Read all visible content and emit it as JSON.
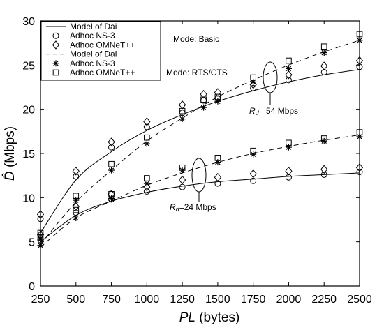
{
  "chart_data": {
    "type": "line",
    "xlabel_italic": "PL",
    "xlabel_rest": " (bytes)",
    "ylabel_symbol": "D̂",
    "ylabel_rest": " (Mbps)",
    "xlim": [
      250,
      2500
    ],
    "ylim": [
      0,
      30
    ],
    "x_ticks": [
      250,
      500,
      750,
      1000,
      1250,
      1500,
      1750,
      2000,
      2250,
      2500
    ],
    "y_ticks": [
      0,
      5,
      10,
      15,
      20,
      25,
      30
    ],
    "grid": false,
    "legend_placement": "top-left",
    "legend_groups": [
      [
        {
          "label": "Model of Dai",
          "style": "solid-line"
        },
        {
          "label": "Adhoc NS-3",
          "style": "circle"
        },
        {
          "label": "Adhoc OMNeT++",
          "style": "diamond"
        }
      ],
      [
        {
          "label": "Model of Dai",
          "style": "dashed-line"
        },
        {
          "label": "Adhoc NS-3",
          "style": "star"
        },
        {
          "label": "Adhoc OMNeT++",
          "style": "square"
        }
      ]
    ],
    "mode_labels": [
      "Mode: Basic",
      "Mode: RTS/CTS"
    ],
    "rate_annotations": [
      {
        "prefix": "R",
        "sub": "d",
        "value": " =54 Mbps"
      },
      {
        "prefix": "R",
        "sub": "d",
        "value": "=24 Mbps"
      }
    ],
    "model_x": [
      250,
      500,
      750,
      1000,
      1250,
      1500,
      1750,
      2000,
      2250,
      2500
    ],
    "series": [
      {
        "rate": "54 Mbps",
        "mode": "Basic",
        "kind": "model",
        "style": "solid",
        "values": [
          6.0,
          12.0,
          15.2,
          17.6,
          19.4,
          20.9,
          22.1,
          23.1,
          23.9,
          24.5
        ]
      },
      {
        "rate": "54 Mbps",
        "mode": "Basic",
        "kind": "ns3",
        "marker": "circle",
        "x": [
          250,
          500,
          750,
          1000,
          1250,
          1400,
          1500,
          1750,
          2000,
          2250,
          2500
        ],
        "values": [
          7.6,
          12.4,
          15.7,
          18.0,
          19.6,
          21.0,
          21.2,
          22.4,
          23.3,
          24.2,
          24.8
        ]
      },
      {
        "rate": "54 Mbps",
        "mode": "Basic",
        "kind": "omnet",
        "marker": "diamond",
        "x": [
          250,
          500,
          750,
          1000,
          1250,
          1400,
          1500,
          1750,
          2000,
          2250,
          2500
        ],
        "values": [
          8.1,
          13.0,
          16.3,
          18.6,
          20.5,
          21.7,
          21.9,
          22.8,
          23.9,
          24.9,
          25.5
        ]
      },
      {
        "rate": "54 Mbps",
        "mode": "RTS/CTS",
        "kind": "model",
        "style": "dashed",
        "values": [
          4.7,
          9.5,
          13.1,
          16.4,
          19.0,
          21.4,
          23.3,
          25.0,
          26.5,
          27.8
        ]
      },
      {
        "rate": "54 Mbps",
        "mode": "RTS/CTS",
        "kind": "ns3",
        "marker": "star",
        "x": [
          250,
          500,
          750,
          1000,
          1250,
          1400,
          1500,
          1750,
          2000,
          2250,
          2500
        ],
        "values": [
          5.3,
          9.7,
          13.1,
          16.1,
          18.9,
          20.2,
          20.9,
          23.1,
          24.6,
          26.4,
          27.8
        ]
      },
      {
        "rate": "54 Mbps",
        "mode": "RTS/CTS",
        "kind": "omnet",
        "marker": "square",
        "x": [
          250,
          500,
          750,
          1000,
          1250,
          1400,
          1500,
          1750,
          2000,
          2250,
          2500
        ],
        "values": [
          6.0,
          10.2,
          13.8,
          16.8,
          19.8,
          21.1,
          21.4,
          23.6,
          25.5,
          27.1,
          28.5
        ]
      },
      {
        "rate": "24 Mbps",
        "mode": "Basic",
        "kind": "model",
        "style": "solid",
        "values": [
          5.0,
          8.0,
          9.6,
          10.6,
          11.3,
          11.8,
          12.1,
          12.4,
          12.6,
          12.8
        ]
      },
      {
        "rate": "24 Mbps",
        "mode": "Basic",
        "kind": "ns3",
        "marker": "circle",
        "values": [
          5.2,
          8.3,
          9.8,
          10.7,
          11.2,
          11.6,
          11.9,
          12.3,
          12.6,
          12.9
        ]
      },
      {
        "rate": "24 Mbps",
        "mode": "Basic",
        "kind": "omnet",
        "marker": "diamond",
        "values": [
          5.8,
          9.0,
          10.4,
          11.2,
          12.0,
          12.3,
          12.7,
          13.0,
          13.2,
          13.4
        ]
      },
      {
        "rate": "24 Mbps",
        "mode": "RTS/CTS",
        "kind": "model",
        "style": "dashed",
        "values": [
          4.4,
          7.7,
          9.6,
          11.4,
          12.8,
          14.0,
          15.0,
          15.8,
          16.5,
          17.1
        ]
      },
      {
        "rate": "24 Mbps",
        "mode": "RTS/CTS",
        "kind": "ns3",
        "marker": "star",
        "values": [
          4.6,
          7.7,
          9.9,
          11.6,
          13.1,
          14.0,
          14.9,
          15.7,
          16.4,
          16.9
        ]
      },
      {
        "rate": "24 Mbps",
        "mode": "RTS/CTS",
        "kind": "omnet",
        "marker": "square",
        "values": [
          5.5,
          8.6,
          10.4,
          12.2,
          13.4,
          14.5,
          15.3,
          16.2,
          16.7,
          17.4
        ]
      }
    ]
  }
}
